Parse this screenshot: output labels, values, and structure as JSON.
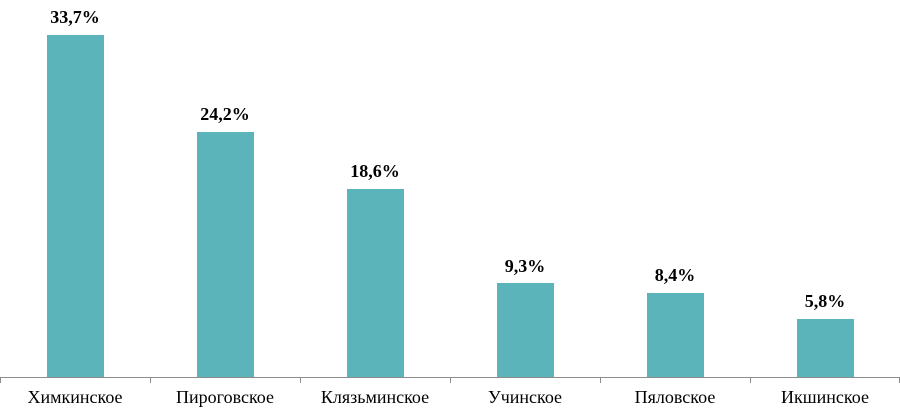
{
  "chart_data": {
    "type": "bar",
    "categories": [
      "Химкинское",
      "Пироговское",
      "Клязьминское",
      "Учинское",
      "Пяловское",
      "Икшинское"
    ],
    "values": [
      33.7,
      24.2,
      18.6,
      9.3,
      8.4,
      5.8
    ],
    "value_labels": [
      "33,7%",
      "24,2%",
      "18,6%",
      "9,3%",
      "8,4%",
      "5,8%"
    ],
    "title": "",
    "xlabel": "",
    "ylabel": "",
    "ylim": [
      0,
      35
    ],
    "grid": false,
    "legend": false,
    "bar_color": "#5cb4bb",
    "axis_color": "#8c8c8c",
    "label_color": "#000000"
  }
}
